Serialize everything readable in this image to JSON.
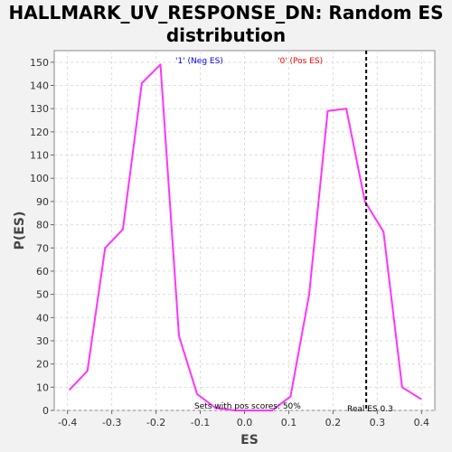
{
  "chart_data": {
    "type": "line",
    "title_line1": "HALLMARK_UV_RESPONSE_DN: Random ES",
    "title_line2": "distribution",
    "xlabel": "ES",
    "ylabel": "P(ES)",
    "xlim": [
      -0.43,
      0.43
    ],
    "ylim": [
      0,
      155
    ],
    "xticks": [
      -0.4,
      -0.3,
      -0.2,
      -0.1,
      0.0,
      0.1,
      0.2,
      0.3,
      0.4
    ],
    "xtick_labels": [
      "-0.4",
      "-0.3",
      "-0.2",
      "-0.1",
      "0.0",
      "0.1",
      "0.2",
      "0.3",
      "0.4"
    ],
    "yticks": [
      0,
      10,
      20,
      30,
      40,
      50,
      60,
      70,
      80,
      90,
      100,
      110,
      120,
      130,
      140,
      150
    ],
    "grid": true,
    "series": [
      {
        "color": "#ff33ff",
        "x": [
          -0.395,
          -0.355,
          -0.315,
          -0.275,
          -0.232,
          -0.19,
          -0.148,
          -0.107,
          -0.065,
          -0.022,
          0.02,
          0.062,
          0.104,
          0.146,
          0.188,
          0.23,
          0.272,
          0.314,
          0.356,
          0.398
        ],
        "y": [
          9,
          17,
          70,
          78,
          141,
          149,
          32,
          7,
          1,
          0,
          0,
          0,
          6,
          50,
          129,
          130,
          90,
          77,
          10,
          5
        ]
      }
    ],
    "reference_line": {
      "x": 0.275,
      "color": "#000000",
      "style": "dashed"
    },
    "annotations": {
      "neg_label": "'1' (Neg ES)",
      "neg_color": "#0000ff",
      "pos_label": "'0' (Pos ES)",
      "pos_color": "#ff0000",
      "pos_scores": "Sets with pos scores: 50%",
      "real_es": "Real ES 0.3"
    }
  }
}
